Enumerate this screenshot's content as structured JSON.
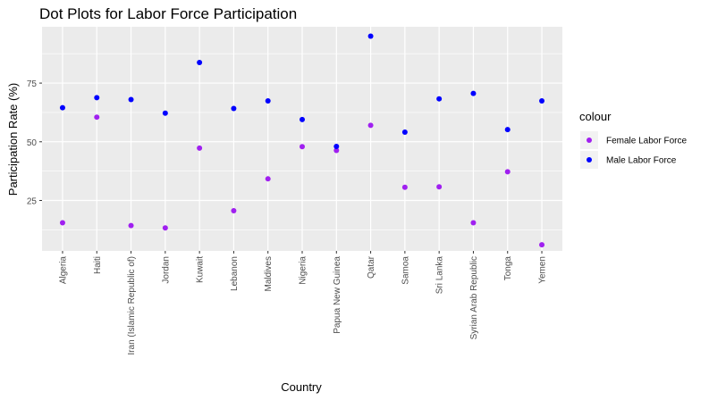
{
  "chart_data": {
    "type": "scatter",
    "title": "Dot Plots for Labor Force Participation",
    "xlabel": "Country",
    "ylabel": "Participation Rate (%)",
    "categories": [
      "Algeria",
      "Haiti",
      "Iran (Islamic Republic of)",
      "Jordan",
      "Kuwait",
      "Lebanon",
      "Maldives",
      "Nigeria",
      "Papua New Guinea",
      "Qatar",
      "Samoa",
      "Sri Lanka",
      "Syrian Arab Republic",
      "Tonga",
      "Yemen"
    ],
    "yticks": [
      25,
      50,
      75
    ],
    "ylim": [
      3.5,
      99
    ],
    "grid": true,
    "legend": {
      "title": "colour",
      "position": "right"
    },
    "series": [
      {
        "name": "Female Labor Force",
        "color": "#a020f0",
        "values": [
          15.5,
          60.5,
          14.3,
          13.3,
          47.3,
          20.6,
          34.2,
          47.9,
          46.3,
          57.0,
          30.6,
          30.8,
          15.5,
          37.2,
          6.1
        ]
      },
      {
        "name": "Male Labor Force",
        "color": "#0000ff",
        "values": [
          64.5,
          68.8,
          68.0,
          62.2,
          83.8,
          64.2,
          67.4,
          59.5,
          48.0,
          95.0,
          54.1,
          68.3,
          70.6,
          55.2,
          67.4
        ]
      }
    ]
  }
}
